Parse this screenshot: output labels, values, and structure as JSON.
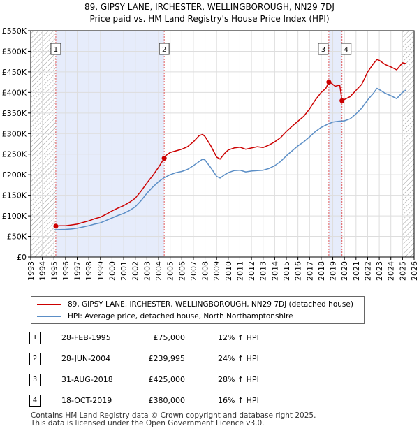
{
  "title_line1": "89, GIPSY LANE, IRCHESTER, WELLINGBOROUGH, NN29 7DJ",
  "title_line2": "Price paid vs. HM Land Registry's House Price Index (HPI)",
  "colors": {
    "property_line": "#cc0000",
    "hpi_line": "#5b8ec6",
    "shade": "#e6ecfb",
    "marker_line": "#e05a5a",
    "hatch": "#999999",
    "grid": "#dddddd"
  },
  "chart_data": {
    "type": "line",
    "xlabel": "",
    "ylabel": "",
    "xlim": [
      1993,
      2026
    ],
    "ylim": [
      0,
      550000
    ],
    "x_ticks": [
      "1993",
      "1994",
      "1995",
      "1996",
      "1997",
      "1998",
      "1999",
      "2000",
      "2001",
      "2002",
      "2003",
      "2004",
      "2005",
      "2006",
      "2007",
      "2008",
      "2009",
      "2010",
      "2011",
      "2012",
      "2013",
      "2014",
      "2015",
      "2016",
      "2017",
      "2018",
      "2019",
      "2020",
      "2021",
      "2022",
      "2023",
      "2024",
      "2025",
      "2026"
    ],
    "y_ticks": [
      {
        "value": 0,
        "label": "£0"
      },
      {
        "value": 50000,
        "label": "£50K"
      },
      {
        "value": 100000,
        "label": "£100K"
      },
      {
        "value": 150000,
        "label": "£150K"
      },
      {
        "value": 200000,
        "label": "£200K"
      },
      {
        "value": 250000,
        "label": "£250K"
      },
      {
        "value": 300000,
        "label": "£300K"
      },
      {
        "value": 350000,
        "label": "£350K"
      },
      {
        "value": 400000,
        "label": "£400K"
      },
      {
        "value": 450000,
        "label": "£450K"
      },
      {
        "value": 500000,
        "label": "£500K"
      },
      {
        "value": 550000,
        "label": "£550K"
      }
    ],
    "hatched_ranges": [
      [
        1993,
        1995.16
      ],
      [
        2025.0,
        2026
      ]
    ],
    "shaded_ranges": [
      [
        1995.16,
        2004.49
      ],
      [
        2018.66,
        2019.79
      ]
    ],
    "series": [
      {
        "name": "89, GIPSY LANE, IRCHESTER, WELLINGBOROUGH, NN29 7DJ (detached house)",
        "color_key": "property_line",
        "x": [
          1995.16,
          1995.5,
          1996,
          1996.5,
          1997,
          1997.5,
          1998,
          1998.5,
          1999,
          1999.5,
          2000,
          2000.5,
          2001,
          2001.5,
          2002,
          2002.5,
          2003,
          2003.5,
          2004,
          2004.49,
          2004.6,
          2005,
          2005.5,
          2006,
          2006.5,
          2007,
          2007.5,
          2007.8,
          2008,
          2008.5,
          2009,
          2009.3,
          2009.7,
          2010,
          2010.5,
          2011,
          2011.5,
          2012,
          2012.5,
          2013,
          2013.5,
          2014,
          2014.5,
          2015,
          2015.5,
          2016,
          2016.5,
          2017,
          2017.5,
          2018,
          2018.4,
          2018.66,
          2018.9,
          2019.2,
          2019.6,
          2019.79,
          2020,
          2020.5,
          2021,
          2021.5,
          2022,
          2022.5,
          2022.8,
          2023,
          2023.5,
          2024,
          2024.5,
          2025,
          2025.3
        ],
        "y": [
          75000,
          76000,
          76000,
          78000,
          80000,
          84000,
          88000,
          93000,
          97000,
          104000,
          112000,
          119000,
          125000,
          133000,
          143000,
          160000,
          180000,
          198000,
          218000,
          239995,
          246000,
          254000,
          258000,
          262000,
          268000,
          280000,
          295000,
          298000,
          293000,
          270000,
          243000,
          238000,
          252000,
          260000,
          265000,
          267000,
          262000,
          265000,
          268000,
          266000,
          272000,
          280000,
          290000,
          305000,
          318000,
          330000,
          342000,
          360000,
          382000,
          400000,
          410000,
          425000,
          422000,
          415000,
          418000,
          380000,
          383000,
          390000,
          405000,
          420000,
          450000,
          470000,
          480000,
          478000,
          468000,
          462000,
          455000,
          472000,
          470000
        ]
      },
      {
        "name": "HPI: Average price, detached house, North Northamptonshire",
        "color_key": "hpi_line",
        "x": [
          1995,
          1995.5,
          1996,
          1996.5,
          1997,
          1997.5,
          1998,
          1998.5,
          1999,
          1999.5,
          2000,
          2000.5,
          2001,
          2001.5,
          2002,
          2002.5,
          2003,
          2003.5,
          2004,
          2004.5,
          2005,
          2005.5,
          2006,
          2006.5,
          2007,
          2007.5,
          2007.8,
          2008,
          2008.5,
          2009,
          2009.3,
          2009.7,
          2010,
          2010.5,
          2011,
          2011.5,
          2012,
          2012.5,
          2013,
          2013.5,
          2014,
          2014.5,
          2015,
          2015.5,
          2016,
          2016.5,
          2017,
          2017.5,
          2018,
          2018.5,
          2019,
          2019.5,
          2020,
          2020.5,
          2021,
          2021.5,
          2022,
          2022.5,
          2022.8,
          2023,
          2023.5,
          2024,
          2024.5,
          2025,
          2025.3
        ],
        "y": [
          66000,
          66500,
          67000,
          68000,
          70000,
          73000,
          76000,
          80000,
          83000,
          89000,
          95000,
          101000,
          106000,
          113000,
          122000,
          137000,
          155000,
          170000,
          183000,
          193000,
          200000,
          205000,
          208000,
          213000,
          222000,
          232000,
          238000,
          236000,
          217000,
          196000,
          192000,
          200000,
          205000,
          210000,
          211000,
          207000,
          209000,
          210000,
          211000,
          215000,
          222000,
          232000,
          246000,
          258000,
          270000,
          280000,
          292000,
          305000,
          315000,
          322000,
          328000,
          330000,
          331000,
          336000,
          348000,
          362000,
          382000,
          398000,
          410000,
          407000,
          398000,
          392000,
          385000,
          400000,
          406000
        ]
      }
    ],
    "sales": [
      {
        "label": "1",
        "x": 1995.16,
        "y": 75000
      },
      {
        "label": "2",
        "x": 2004.49,
        "y": 239995
      },
      {
        "label": "3",
        "x": 2018.66,
        "y": 425000
      },
      {
        "label": "4",
        "x": 2019.79,
        "y": 380000
      }
    ]
  },
  "legend": {
    "property": "89, GIPSY LANE, IRCHESTER, WELLINGBOROUGH, NN29 7DJ (detached house)",
    "hpi": "HPI: Average price, detached house, North Northamptonshire"
  },
  "sales_table": [
    {
      "num": "1",
      "date": "28-FEB-1995",
      "price": "£75,000",
      "hpi": "12% ↑ HPI"
    },
    {
      "num": "2",
      "date": "28-JUN-2004",
      "price": "£239,995",
      "hpi": "24% ↑ HPI"
    },
    {
      "num": "3",
      "date": "31-AUG-2018",
      "price": "£425,000",
      "hpi": "28% ↑ HPI"
    },
    {
      "num": "4",
      "date": "18-OCT-2019",
      "price": "£380,000",
      "hpi": "16% ↑ HPI"
    }
  ],
  "footer_line1": "Contains HM Land Registry data © Crown copyright and database right 2025.",
  "footer_line2": "This data is licensed under the Open Government Licence v3.0."
}
